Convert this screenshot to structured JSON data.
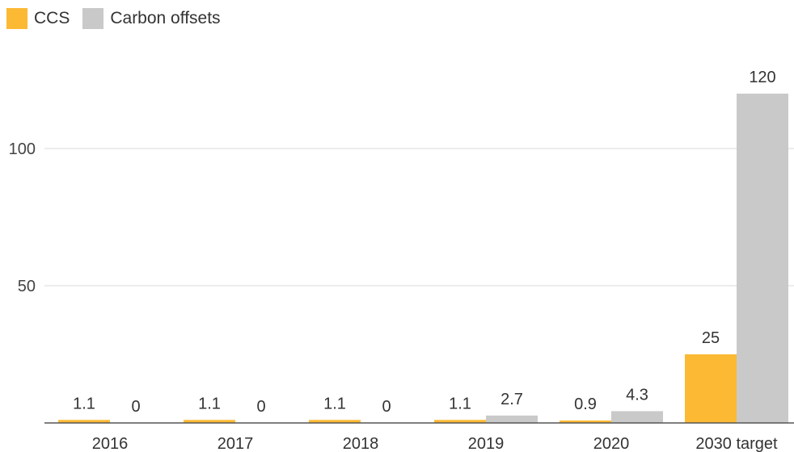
{
  "chart_data": {
    "type": "bar",
    "categories": [
      "2016",
      "2017",
      "2018",
      "2019",
      "2020",
      "2030 target"
    ],
    "series": [
      {
        "name": "CCS",
        "values": [
          1.1,
          1.1,
          1.1,
          1.1,
          0.9,
          25
        ],
        "color": "#FCB934"
      },
      {
        "name": "Carbon offsets",
        "values": [
          0,
          0,
          0,
          2.7,
          4.3,
          120
        ],
        "color": "#C9C9C9"
      }
    ],
    "data_labels": [
      [
        "1.1",
        "1.1",
        "1.1",
        "1.1",
        "0.9",
        "25"
      ],
      [
        "0",
        "0",
        "0",
        "2.7",
        "4.3",
        "120"
      ]
    ],
    "yticks": [
      50,
      100
    ],
    "ytick_labels": [
      "50",
      "100"
    ],
    "ylim": [
      0,
      130
    ],
    "grid": true,
    "legend_position": "top-left"
  }
}
